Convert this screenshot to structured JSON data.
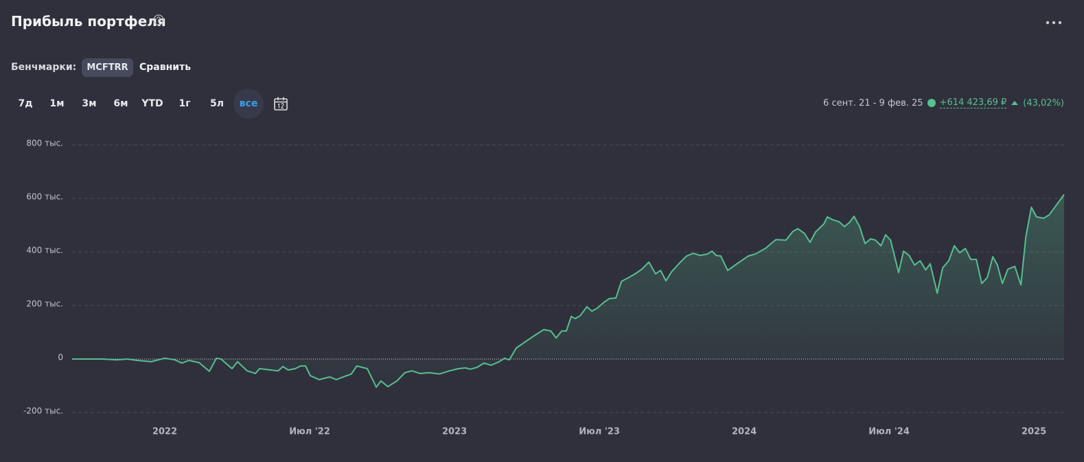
{
  "header": {
    "title": "Прибыль портфеля",
    "benchmarks_label": "Бенчмарки:",
    "benchmark": "MCFTRR",
    "compare": "Сравнить",
    "periods": [
      "7д",
      "1м",
      "3м",
      "6м",
      "YTD",
      "1г",
      "5л",
      "все"
    ],
    "range": "6 сент. 21 - 9 фев. 25",
    "profit": "+614 423,69 ₽",
    "percent": "(43,02%)"
  },
  "chart_data": {
    "type": "line",
    "color": "#56c18f",
    "area": true,
    "grid": true,
    "ylim": [
      -200000,
      800000
    ],
    "yticks": [
      {
        "value": -200000,
        "label": "-200 тыс."
      },
      0,
      {
        "value": 200000,
        "label": "200 тыс."
      },
      {
        "value": 400000,
        "label": "400 тыс."
      },
      {
        "value": 600000,
        "label": "600 тыс."
      },
      {
        "value": 800000,
        "label": "800 тыс."
      }
    ],
    "xlim": [
      2021.68,
      2025.104
    ],
    "xticks": [
      {
        "value": 2022,
        "label": "2022"
      },
      {
        "value": 2022.5,
        "label": "Июл '22"
      },
      {
        "value": 2023,
        "label": "2023"
      },
      {
        "value": 2023.5,
        "label": "Июл '23"
      },
      {
        "value": 2024,
        "label": "2024"
      },
      {
        "value": 2024.5,
        "label": "Июл '24"
      },
      {
        "value": 2025,
        "label": "2025"
      }
    ],
    "x": [
      2021.68,
      2021.739,
      2021.787,
      2021.834,
      2021.87,
      2021.905,
      2021.953,
      2022.0,
      2022.035,
      2022.059,
      2022.083,
      2022.118,
      2022.154,
      2022.178,
      2022.194,
      2022.213,
      2022.232,
      2022.251,
      2022.284,
      2022.313,
      2022.327,
      2022.391,
      2022.408,
      2022.426,
      2022.45,
      2022.469,
      2022.486,
      2022.502,
      2022.533,
      2022.569,
      2022.592,
      2022.616,
      2022.644,
      2022.663,
      2022.699,
      2022.73,
      2022.746,
      2022.77,
      2022.801,
      2022.829,
      2022.853,
      2022.881,
      2022.912,
      2022.948,
      2022.983,
      2023.014,
      2023.038,
      2023.054,
      2023.078,
      2023.102,
      2023.126,
      2023.154,
      2023.173,
      2023.189,
      2023.213,
      2023.244,
      2023.275,
      2023.308,
      2023.332,
      2023.351,
      2023.37,
      2023.386,
      2023.403,
      2023.417,
      2023.434,
      2023.457,
      2023.474,
      2023.493,
      2023.517,
      2023.535,
      2023.557,
      2023.576,
      2023.599,
      2023.623,
      2023.647,
      2023.671,
      2023.694,
      2023.711,
      2023.73,
      2023.749,
      2023.777,
      2023.801,
      2023.824,
      2023.848,
      2023.872,
      2023.889,
      2023.903,
      2023.919,
      2023.943,
      2023.979,
      2024.014,
      2024.038,
      2024.073,
      2024.109,
      2024.144,
      2024.168,
      2024.185,
      2024.208,
      2024.227,
      2024.246,
      2024.275,
      2024.287,
      2024.303,
      2024.327,
      2024.346,
      2024.363,
      2024.379,
      2024.398,
      2024.417,
      2024.436,
      2024.453,
      2024.472,
      2024.488,
      2024.505,
      2024.517,
      2024.533,
      2024.55,
      2024.569,
      2024.588,
      2024.607,
      2024.626,
      2024.642,
      2024.666,
      2024.685,
      2024.706,
      2024.725,
      2024.744,
      2024.763,
      2024.782,
      2024.801,
      2024.82,
      2024.839,
      2024.858,
      2024.874,
      2024.891,
      2024.91,
      2024.934,
      2024.955,
      2024.972,
      2024.991,
      2025.009,
      2025.033,
      2025.052,
      2025.08,
      2025.104
    ],
    "values": [
      0,
      0,
      0,
      -3000,
      0,
      -5000,
      -10000,
      3000,
      -3000,
      -15000,
      -5000,
      -13000,
      -46000,
      3000,
      0,
      -18000,
      -36000,
      -10000,
      -44000,
      -54000,
      -36000,
      -44000,
      -28000,
      -41000,
      -36000,
      -26000,
      -26000,
      -62000,
      -77000,
      -67000,
      -77000,
      -67000,
      -56000,
      -26000,
      -36000,
      -105000,
      -82000,
      -103000,
      -82000,
      -51000,
      -44000,
      -54000,
      -51000,
      -56000,
      -44000,
      -36000,
      -33000,
      -38000,
      -31000,
      -15000,
      -23000,
      -10000,
      3000,
      -3000,
      41000,
      64000,
      87000,
      110000,
      105000,
      79000,
      105000,
      105000,
      159000,
      151000,
      162000,
      195000,
      179000,
      190000,
      213000,
      226000,
      228000,
      290000,
      303000,
      318000,
      336000,
      362000,
      318000,
      331000,
      292000,
      326000,
      359000,
      385000,
      395000,
      387000,
      392000,
      403000,
      387000,
      385000,
      331000,
      359000,
      385000,
      392000,
      413000,
      446000,
      444000,
      477000,
      487000,
      469000,
      436000,
      474000,
      505000,
      531000,
      521000,
      513000,
      495000,
      510000,
      533000,
      495000,
      431000,
      449000,
      444000,
      423000,
      464000,
      444000,
      392000,
      323000,
      403000,
      387000,
      351000,
      367000,
      333000,
      356000,
      246000,
      341000,
      367000,
      423000,
      397000,
      413000,
      372000,
      372000,
      282000,
      305000,
      382000,
      351000,
      282000,
      336000,
      346000,
      277000,
      456000,
      567000,
      531000,
      526000,
      538000,
      579000,
      614424
    ]
  }
}
